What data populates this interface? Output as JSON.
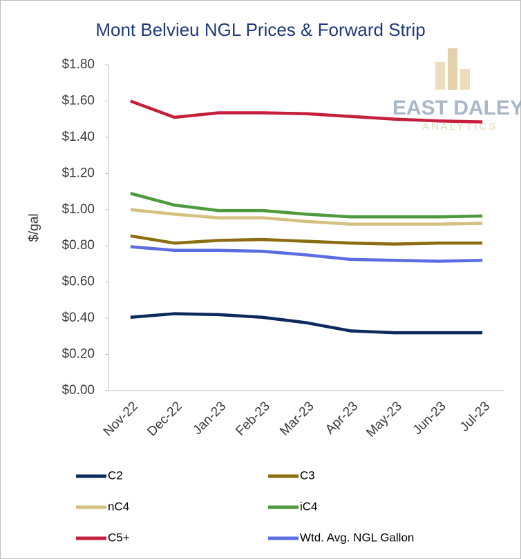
{
  "chart_data": {
    "type": "line",
    "title": "Mont Belvieu NGL Prices & Forward Strip",
    "y_label": "$/gal",
    "logo": {
      "name": "EAST DALEY",
      "tagline": "ANALYTICS"
    },
    "categories": [
      "Nov-22",
      "Dec-22",
      "Jan-23",
      "Feb-23",
      "Mar-23",
      "Apr-23",
      "May-23",
      "Jun-23",
      "Jul-23"
    ],
    "ylim": [
      0,
      1.8
    ],
    "yticks": [
      {
        "value": 0,
        "label": "$0.00"
      },
      {
        "value": 0.2,
        "label": "$0.20"
      },
      {
        "value": 0.4,
        "label": "$0.40"
      },
      {
        "value": 0.6,
        "label": "$0.60"
      },
      {
        "value": 0.8,
        "label": "$0.80"
      },
      {
        "value": 1.0,
        "label": "$1.00"
      },
      {
        "value": 1.2,
        "label": "$1.20"
      },
      {
        "value": 1.4,
        "label": "$1.40"
      },
      {
        "value": 1.6,
        "label": "$1.60"
      },
      {
        "value": 1.8,
        "label": "$1.80"
      }
    ],
    "grid": false,
    "series": [
      {
        "name": "C2",
        "color": "#0d2a5c",
        "values": [
          0.405,
          0.425,
          0.42,
          0.405,
          0.375,
          0.33,
          0.32,
          0.32,
          0.32
        ]
      },
      {
        "name": "C3",
        "color": "#8c6d12",
        "values": [
          0.855,
          0.815,
          0.83,
          0.835,
          0.825,
          0.815,
          0.81,
          0.815,
          0.815
        ]
      },
      {
        "name": "nC4",
        "color": "#d4c07f",
        "values": [
          1.0,
          0.975,
          0.955,
          0.955,
          0.935,
          0.92,
          0.92,
          0.92,
          0.925
        ]
      },
      {
        "name": "iC4",
        "color": "#4f9a3e",
        "values": [
          1.09,
          1.025,
          0.995,
          0.995,
          0.975,
          0.96,
          0.96,
          0.96,
          0.965
        ]
      },
      {
        "name": "C5+",
        "color": "#c51f3b",
        "values": [
          1.6,
          1.51,
          1.535,
          1.535,
          1.53,
          1.515,
          1.5,
          1.49,
          1.485
        ]
      },
      {
        "name": "Wtd. Avg. NGL Gallon",
        "color": "#5b6de0",
        "values": [
          0.795,
          0.775,
          0.775,
          0.77,
          0.75,
          0.725,
          0.72,
          0.715,
          0.72
        ]
      }
    ]
  }
}
